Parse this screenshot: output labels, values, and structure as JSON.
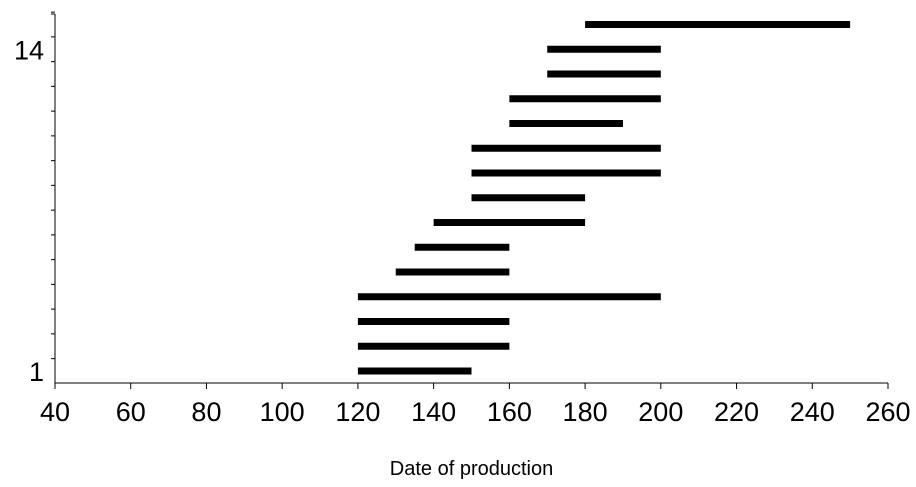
{
  "chart_data": {
    "type": "bar",
    "orientation": "horizontal-range",
    "title": "",
    "xlabel": "Date of production",
    "ylabel": "",
    "xlim": [
      40,
      260
    ],
    "x_ticks": [
      40,
      60,
      80,
      100,
      120,
      140,
      160,
      180,
      200,
      220,
      240,
      260
    ],
    "y_tick_labels": [
      {
        "row": 1,
        "label": "1"
      },
      {
        "row": 14,
        "label": "14"
      }
    ],
    "grid": false,
    "bar_color": "#000000",
    "ranges": [
      {
        "row": 1,
        "start": 120,
        "end": 150
      },
      {
        "row": 2,
        "start": 120,
        "end": 160
      },
      {
        "row": 3,
        "start": 120,
        "end": 160
      },
      {
        "row": 4,
        "start": 120,
        "end": 200
      },
      {
        "row": 5,
        "start": 130,
        "end": 160
      },
      {
        "row": 6,
        "start": 135,
        "end": 160
      },
      {
        "row": 7,
        "start": 140,
        "end": 180
      },
      {
        "row": 8,
        "start": 150,
        "end": 180
      },
      {
        "row": 9,
        "start": 150,
        "end": 200
      },
      {
        "row": 10,
        "start": 150,
        "end": 200
      },
      {
        "row": 11,
        "start": 160,
        "end": 190
      },
      {
        "row": 12,
        "start": 160,
        "end": 200
      },
      {
        "row": 13,
        "start": 170,
        "end": 200
      },
      {
        "row": 14,
        "start": 170,
        "end": 200
      },
      {
        "row": 15,
        "start": 180,
        "end": 250
      }
    ]
  }
}
